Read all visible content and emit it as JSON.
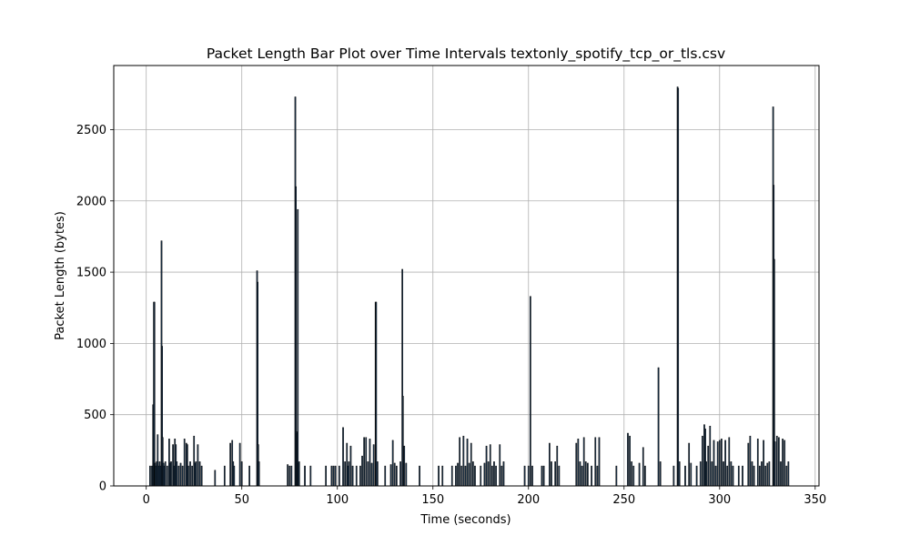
{
  "chart_data": {
    "type": "bar",
    "title": "Packet Length Bar Plot over Time Intervals textonly_spotify_tcp_or_tls.csv",
    "xlabel": "Time (seconds)",
    "ylabel": "Packet Length (bytes)",
    "xlim": [
      -17,
      352
    ],
    "ylim": [
      0,
      2950
    ],
    "xticks": [
      0,
      50,
      100,
      150,
      200,
      250,
      300,
      350
    ],
    "yticks": [
      0,
      500,
      1000,
      1500,
      2000,
      2500
    ],
    "grid": true,
    "bar_color": "#1f3b57",
    "bar_edge_color": "#000000",
    "points": [
      [
        2,
        140
      ],
      [
        3,
        140
      ],
      [
        3.6,
        570
      ],
      [
        4,
        1290
      ],
      [
        4.3,
        1290
      ],
      [
        4.6,
        160
      ],
      [
        5,
        140
      ],
      [
        5.5,
        170
      ],
      [
        6,
        360
      ],
      [
        6.5,
        140
      ],
      [
        7,
        170
      ],
      [
        7.5,
        140
      ],
      [
        8,
        1720
      ],
      [
        8.3,
        980
      ],
      [
        8.6,
        340
      ],
      [
        9,
        160
      ],
      [
        9.5,
        140
      ],
      [
        10,
        170
      ],
      [
        11,
        140
      ],
      [
        12,
        330
      ],
      [
        12.5,
        160
      ],
      [
        13,
        170
      ],
      [
        14,
        290
      ],
      [
        14.5,
        140
      ],
      [
        15,
        330
      ],
      [
        15.5,
        290
      ],
      [
        16,
        170
      ],
      [
        17,
        140
      ],
      [
        18,
        160
      ],
      [
        19,
        140
      ],
      [
        20,
        330
      ],
      [
        21,
        300
      ],
      [
        21.5,
        290
      ],
      [
        22,
        140
      ],
      [
        23,
        170
      ],
      [
        24,
        140
      ],
      [
        25,
        350
      ],
      [
        25.5,
        160
      ],
      [
        26,
        170
      ],
      [
        27,
        290
      ],
      [
        28,
        170
      ],
      [
        29,
        140
      ],
      [
        36,
        110
      ],
      [
        41,
        140
      ],
      [
        44,
        300
      ],
      [
        45,
        320
      ],
      [
        45.5,
        170
      ],
      [
        46,
        140
      ],
      [
        49,
        300
      ],
      [
        50,
        170
      ],
      [
        54,
        140
      ],
      [
        58,
        1510
      ],
      [
        58.3,
        1430
      ],
      [
        58.6,
        290
      ],
      [
        59,
        170
      ],
      [
        74,
        150
      ],
      [
        75,
        140
      ],
      [
        76,
        140
      ],
      [
        78,
        2730
      ],
      [
        78.3,
        2100
      ],
      [
        78.6,
        380
      ],
      [
        79,
        370
      ],
      [
        79.3,
        1940
      ],
      [
        79.6,
        160
      ],
      [
        80,
        170
      ],
      [
        83,
        140
      ],
      [
        86,
        140
      ],
      [
        94,
        140
      ],
      [
        97,
        140
      ],
      [
        98,
        140
      ],
      [
        99,
        140
      ],
      [
        101,
        140
      ],
      [
        103,
        410
      ],
      [
        104,
        170
      ],
      [
        105,
        300
      ],
      [
        105.5,
        140
      ],
      [
        106,
        170
      ],
      [
        107,
        280
      ],
      [
        108,
        140
      ],
      [
        110,
        140
      ],
      [
        112,
        140
      ],
      [
        113,
        210
      ],
      [
        114,
        340
      ],
      [
        115,
        340
      ],
      [
        116,
        170
      ],
      [
        117,
        330
      ],
      [
        118,
        160
      ],
      [
        119,
        290
      ],
      [
        120,
        1290
      ],
      [
        120.3,
        1290
      ],
      [
        121,
        170
      ],
      [
        125,
        140
      ],
      [
        128,
        150
      ],
      [
        129,
        320
      ],
      [
        130,
        160
      ],
      [
        131,
        140
      ],
      [
        133,
        170
      ],
      [
        134,
        1520
      ],
      [
        134.3,
        630
      ],
      [
        135,
        280
      ],
      [
        136,
        160
      ],
      [
        143,
        140
      ],
      [
        153,
        140
      ],
      [
        155,
        140
      ],
      [
        160,
        140
      ],
      [
        162,
        140
      ],
      [
        163,
        160
      ],
      [
        164,
        340
      ],
      [
        165,
        140
      ],
      [
        166,
        350
      ],
      [
        167,
        140
      ],
      [
        168,
        330
      ],
      [
        169,
        160
      ],
      [
        170,
        300
      ],
      [
        171,
        170
      ],
      [
        172,
        140
      ],
      [
        175,
        140
      ],
      [
        177,
        160
      ],
      [
        178,
        280
      ],
      [
        179,
        170
      ],
      [
        180,
        290
      ],
      [
        181,
        140
      ],
      [
        182,
        170
      ],
      [
        183,
        140
      ],
      [
        185,
        290
      ],
      [
        186,
        140
      ],
      [
        187,
        170
      ],
      [
        198,
        140
      ],
      [
        200,
        140
      ],
      [
        201,
        1330
      ],
      [
        202,
        140
      ],
      [
        207,
        140
      ],
      [
        208,
        140
      ],
      [
        211,
        300
      ],
      [
        212,
        170
      ],
      [
        214,
        170
      ],
      [
        215,
        280
      ],
      [
        216,
        140
      ],
      [
        225,
        300
      ],
      [
        226,
        330
      ],
      [
        227,
        170
      ],
      [
        228,
        140
      ],
      [
        229,
        340
      ],
      [
        230,
        170
      ],
      [
        231,
        160
      ],
      [
        233,
        140
      ],
      [
        235,
        340
      ],
      [
        236,
        140
      ],
      [
        237,
        340
      ],
      [
        246,
        140
      ],
      [
        252,
        370
      ],
      [
        253,
        350
      ],
      [
        254,
        170
      ],
      [
        255,
        140
      ],
      [
        258,
        160
      ],
      [
        260,
        270
      ],
      [
        261,
        140
      ],
      [
        268,
        830
      ],
      [
        269,
        170
      ],
      [
        276,
        140
      ],
      [
        278,
        2800
      ],
      [
        278.3,
        2790
      ],
      [
        279,
        170
      ],
      [
        282,
        140
      ],
      [
        284,
        300
      ],
      [
        285,
        160
      ],
      [
        288,
        140
      ],
      [
        290,
        170
      ],
      [
        291,
        350
      ],
      [
        292,
        430
      ],
      [
        292.5,
        400
      ],
      [
        293,
        170
      ],
      [
        294,
        280
      ],
      [
        295,
        420
      ],
      [
        296,
        170
      ],
      [
        297,
        320
      ],
      [
        298,
        140
      ],
      [
        299,
        310
      ],
      [
        300,
        320
      ],
      [
        301,
        330
      ],
      [
        302,
        170
      ],
      [
        303,
        320
      ],
      [
        304,
        140
      ],
      [
        305,
        340
      ],
      [
        306,
        170
      ],
      [
        307,
        140
      ],
      [
        310,
        140
      ],
      [
        312,
        140
      ],
      [
        315,
        300
      ],
      [
        316,
        350
      ],
      [
        317,
        170
      ],
      [
        318,
        140
      ],
      [
        320,
        330
      ],
      [
        321,
        140
      ],
      [
        322,
        170
      ],
      [
        323,
        320
      ],
      [
        324,
        140
      ],
      [
        325,
        160
      ],
      [
        326,
        170
      ],
      [
        328,
        2660
      ],
      [
        328.3,
        2110
      ],
      [
        328.6,
        1590
      ],
      [
        329,
        310
      ],
      [
        330,
        350
      ],
      [
        331,
        340
      ],
      [
        332,
        170
      ],
      [
        333,
        330
      ],
      [
        334,
        320
      ],
      [
        335,
        140
      ],
      [
        336,
        170
      ]
    ]
  }
}
